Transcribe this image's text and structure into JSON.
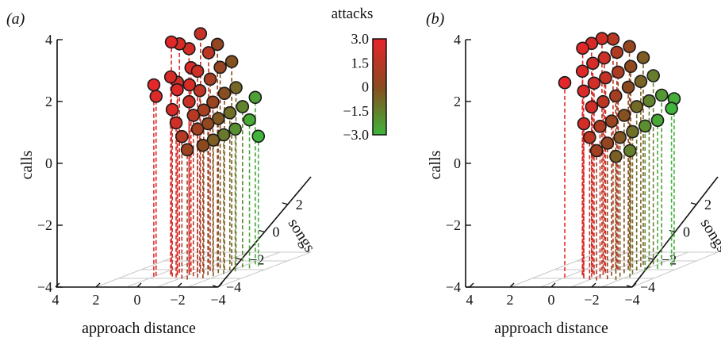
{
  "chart_data": [
    {
      "type": "scatter",
      "panel_label": "(a)",
      "xlabel": "approach distance",
      "ylabel": "songs",
      "zlabel": "calls",
      "xticks": [
        "4",
        "2",
        "0",
        "−2",
        "−4"
      ],
      "yticks": [
        "2",
        "0",
        "−2",
        "−4"
      ],
      "zticks": [
        "4",
        "2",
        "0",
        "−2",
        "−4"
      ],
      "xlim": [
        4,
        -4
      ],
      "ylim": [
        -4,
        4
      ],
      "zlim": [
        -4,
        4
      ],
      "grid": true,
      "points_note": "x = approach distance, y = songs, z = calls, c = attacks",
      "points": [
        {
          "x": 2.0,
          "y": -1.6,
          "z": 2.2,
          "c": 2.9
        },
        {
          "x": 2.0,
          "y": -1.4,
          "z": 1.8,
          "c": 2.6
        },
        {
          "x": 1.3,
          "y": -1.0,
          "z": 3.5,
          "c": 2.8
        },
        {
          "x": 1.0,
          "y": -0.7,
          "z": 3.4,
          "c": 2.5
        },
        {
          "x": 1.2,
          "y": -1.2,
          "z": 2.4,
          "c": 2.4
        },
        {
          "x": 0.9,
          "y": -1.0,
          "z": 2.2,
          "c": 2.2
        },
        {
          "x": 0.6,
          "y": -0.4,
          "z": 3.2,
          "c": 2.3
        },
        {
          "x": 0.3,
          "y": 0.2,
          "z": 3.6,
          "c": 1.9
        },
        {
          "x": 0.4,
          "y": -0.5,
          "z": 2.6,
          "c": 2.6
        },
        {
          "x": 0.7,
          "y": -1.3,
          "z": 2.0,
          "c": 2.7
        },
        {
          "x": 0.2,
          "y": -0.9,
          "z": 2.1,
          "c": 2.4
        },
        {
          "x": -0.1,
          "y": -0.6,
          "z": 2.5,
          "c": 2.1
        },
        {
          "x": -0.3,
          "y": 0.1,
          "z": 3.0,
          "c": 1.6
        },
        {
          "x": -0.5,
          "y": 0.6,
          "z": 3.2,
          "c": 0.3
        },
        {
          "x": 0.0,
          "y": -1.2,
          "z": 1.6,
          "c": 2.0
        },
        {
          "x": -0.4,
          "y": -0.8,
          "z": 1.9,
          "c": 1.7
        },
        {
          "x": -0.7,
          "y": -0.3,
          "z": 2.2,
          "c": 1.0
        },
        {
          "x": -0.9,
          "y": 0.3,
          "z": 2.5,
          "c": 0.4
        },
        {
          "x": -1.2,
          "y": 0.9,
          "z": 2.6,
          "c": -0.2
        },
        {
          "x": -0.5,
          "y": -1.5,
          "z": 1.2,
          "c": 1.5
        },
        {
          "x": -0.8,
          "y": -1.0,
          "z": 1.3,
          "c": 0.9
        },
        {
          "x": -1.1,
          "y": -0.6,
          "z": 1.5,
          "c": 0.5
        },
        {
          "x": -1.4,
          "y": 0.0,
          "z": 1.7,
          "c": -0.1
        },
        {
          "x": -1.7,
          "y": 0.6,
          "z": 1.8,
          "c": -0.8
        },
        {
          "x": -1.0,
          "y": -1.8,
          "z": 0.8,
          "c": 0.8
        },
        {
          "x": -1.3,
          "y": -1.3,
          "z": 0.9,
          "c": 0.2
        },
        {
          "x": -1.6,
          "y": -0.8,
          "z": 1.0,
          "c": -0.4
        },
        {
          "x": -1.9,
          "y": -0.2,
          "z": 1.1,
          "c": -1.0
        },
        {
          "x": -2.2,
          "y": 0.5,
          "z": 1.2,
          "c": -1.6
        },
        {
          "x": -2.5,
          "y": 1.2,
          "z": 1.4,
          "c": -2.4
        },
        {
          "x": -1.5,
          "y": -2.0,
          "z": 0.3,
          "c": 0.1
        },
        {
          "x": -1.8,
          "y": -1.5,
          "z": 0.4,
          "c": -0.6
        },
        {
          "x": -2.1,
          "y": -1.0,
          "z": 0.5,
          "c": -1.3
        },
        {
          "x": -2.4,
          "y": -0.4,
          "z": 0.6,
          "c": -2.0
        },
        {
          "x": -2.8,
          "y": 0.3,
          "z": 0.8,
          "c": -2.7
        },
        {
          "x": -3.0,
          "y": 0.8,
          "z": 0.2,
          "c": -3.0
        },
        {
          "x": 0.8,
          "y": -1.6,
          "z": 1.4,
          "c": 2.5
        },
        {
          "x": 0.4,
          "y": -1.8,
          "z": 1.0,
          "c": 2.2
        },
        {
          "x": -0.2,
          "y": -2.1,
          "z": 0.6,
          "c": 1.4
        },
        {
          "x": -0.7,
          "y": -2.3,
          "z": 0.2,
          "c": 0.6
        }
      ]
    },
    {
      "type": "scatter",
      "panel_label": "(b)",
      "xlabel": "approach distance",
      "ylabel": "songs",
      "zlabel": "calls",
      "xticks": [
        "4",
        "2",
        "0",
        "−2",
        "−4"
      ],
      "yticks": [
        "2",
        "0",
        "−2",
        "−4"
      ],
      "zticks": [
        "4",
        "2",
        "0",
        "−2",
        "−4"
      ],
      "xlim": [
        4,
        -4
      ],
      "ylim": [
        -4,
        4
      ],
      "zlim": [
        -4,
        4
      ],
      "grid": true,
      "points_note": "x = approach distance, y = songs, z = calls, c = attacks",
      "points": [
        {
          "x": 2.0,
          "y": -1.8,
          "z": 2.3,
          "c": 2.9
        },
        {
          "x": 1.4,
          "y": -1.0,
          "z": 3.3,
          "c": 2.8
        },
        {
          "x": 1.1,
          "y": -0.6,
          "z": 3.4,
          "c": 2.5
        },
        {
          "x": 0.7,
          "y": -0.2,
          "z": 3.5,
          "c": 2.2
        },
        {
          "x": 0.4,
          "y": 0.4,
          "z": 3.4,
          "c": 1.5
        },
        {
          "x": 1.2,
          "y": -1.3,
          "z": 2.6,
          "c": 2.7
        },
        {
          "x": 0.8,
          "y": -0.9,
          "z": 2.8,
          "c": 2.4
        },
        {
          "x": 0.4,
          "y": -0.4,
          "z": 2.9,
          "c": 2.1
        },
        {
          "x": 0.0,
          "y": 0.2,
          "z": 3.0,
          "c": 1.2
        },
        {
          "x": -0.4,
          "y": 0.8,
          "z": 3.1,
          "c": 0.3
        },
        {
          "x": 0.9,
          "y": -1.6,
          "z": 2.0,
          "c": 2.6
        },
        {
          "x": 0.5,
          "y": -1.2,
          "z": 2.2,
          "c": 2.3
        },
        {
          "x": 0.1,
          "y": -0.7,
          "z": 2.3,
          "c": 1.9
        },
        {
          "x": -0.3,
          "y": -0.1,
          "z": 2.4,
          "c": 1.1
        },
        {
          "x": -0.7,
          "y": 0.5,
          "z": 2.5,
          "c": 0.2
        },
        {
          "x": -1.1,
          "y": 1.1,
          "z": 2.7,
          "c": -0.5
        },
        {
          "x": 0.3,
          "y": -1.7,
          "z": 1.5,
          "c": 2.2
        },
        {
          "x": -0.1,
          "y": -1.2,
          "z": 1.6,
          "c": 1.6
        },
        {
          "x": -0.5,
          "y": -0.6,
          "z": 1.7,
          "c": 0.8
        },
        {
          "x": -0.9,
          "y": 0.0,
          "z": 1.9,
          "c": 0.0
        },
        {
          "x": -1.3,
          "y": 0.6,
          "z": 2.0,
          "c": -0.7
        },
        {
          "x": -1.7,
          "y": 1.2,
          "z": 2.1,
          "c": -1.4
        },
        {
          "x": -0.4,
          "y": -1.9,
          "z": 0.9,
          "c": 1.2
        },
        {
          "x": -0.8,
          "y": -1.4,
          "z": 1.0,
          "c": 0.5
        },
        {
          "x": -1.2,
          "y": -0.8,
          "z": 1.1,
          "c": -0.2
        },
        {
          "x": -1.6,
          "y": -0.2,
          "z": 1.3,
          "c": -0.9
        },
        {
          "x": -2.0,
          "y": 0.4,
          "z": 1.4,
          "c": -1.6
        },
        {
          "x": -2.4,
          "y": 1.0,
          "z": 1.5,
          "c": -2.2
        },
        {
          "x": -2.8,
          "y": 1.6,
          "z": 1.3,
          "c": -2.8
        },
        {
          "x": -1.1,
          "y": -2.2,
          "z": 0.4,
          "c": 0.4
        },
        {
          "x": -1.5,
          "y": -1.6,
          "z": 0.5,
          "c": -0.3
        },
        {
          "x": -1.9,
          "y": -1.0,
          "z": 0.6,
          "c": -1.1
        },
        {
          "x": -2.3,
          "y": -0.4,
          "z": 0.7,
          "c": -1.9
        },
        {
          "x": -2.7,
          "y": 0.2,
          "z": 0.8,
          "c": -2.6
        },
        {
          "x": -3.2,
          "y": 0.8,
          "z": 1.1,
          "c": -3.0
        },
        {
          "x": -1.8,
          "y": -2.4,
          "z": 0.0,
          "c": -0.6
        },
        {
          "x": -2.3,
          "y": -1.8,
          "z": 0.1,
          "c": -1.5
        },
        {
          "x": 0.6,
          "y": -2.0,
          "z": 1.0,
          "c": 2.4
        },
        {
          "x": 0.0,
          "y": -2.3,
          "z": 0.6,
          "c": 1.6
        },
        {
          "x": -0.6,
          "y": -2.5,
          "z": 0.2,
          "c": 0.8
        }
      ]
    }
  ],
  "colorbar": {
    "title": "attacks",
    "ticks": [
      "3.0",
      "1.5",
      "0",
      "−1.5",
      "−3.0"
    ],
    "range": [
      -3.0,
      3.0
    ],
    "colors": {
      "high": "#e8252a",
      "mid": "#8a4a1e",
      "low": "#3fb53b"
    }
  }
}
